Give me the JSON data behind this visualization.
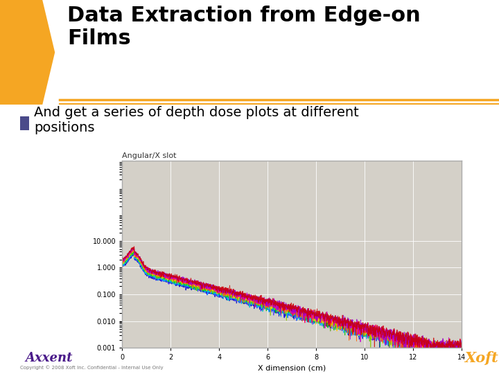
{
  "title": "Data Extraction from Edge-on\nFilms",
  "bullet": "And get a series of depth dose plots at different\npositions",
  "plot_title": "Angular/X slot",
  "xlabel": "X dimension (cm)",
  "ylabel": "",
  "bg_color": "#ffffff",
  "slide_bg": "#ffffff",
  "plot_bg": "#d4d0c8",
  "title_color": "#000000",
  "bullet_color": "#000000",
  "bullet_square_color": "#4a4a8a",
  "line_colors": [
    "#0000cc",
    "#3333ff",
    "#00aaff",
    "#00cccc",
    "#00cc00",
    "#88cc00",
    "#ffcc00",
    "#ff6600",
    "#ff0066",
    "#cc00cc",
    "#9900cc",
    "#cc0000"
  ],
  "xlim": [
    0,
    14
  ],
  "ylim_log": [
    0.001,
    10000
  ],
  "yticks": [
    0.001,
    0.01,
    0.1,
    1.0,
    10.0
  ],
  "ytick_labels": [
    "0.001",
    "0.010",
    "0.100",
    "1.000",
    "10.000"
  ],
  "xticks": [
    0,
    2,
    4,
    6,
    8,
    10,
    12,
    14
  ],
  "title_fontsize": 22,
  "bullet_fontsize": 14,
  "orange_bar_color": "#f5a623",
  "header_line_color": "#f5a623",
  "axxent_purple": "#4a1a8a",
  "axxent_gold": "#f5a623",
  "xoft_orange": "#f5a623"
}
